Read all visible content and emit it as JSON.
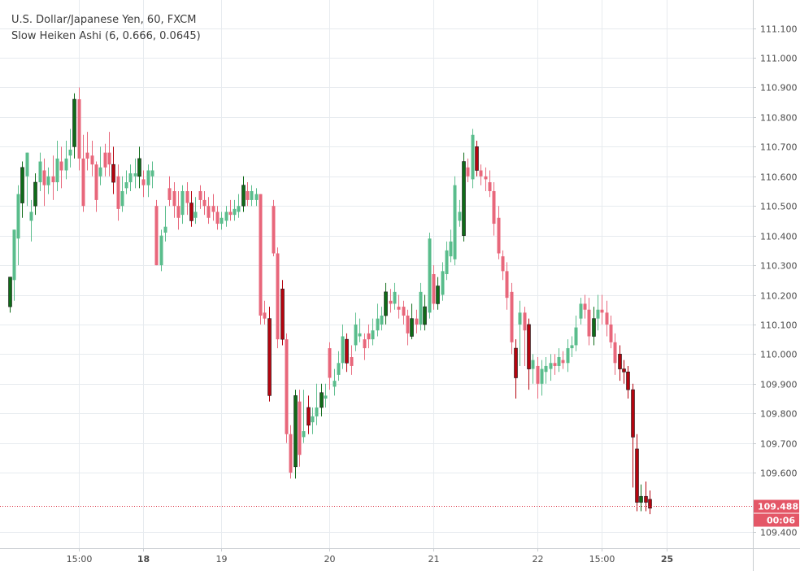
{
  "legend": {
    "title": "U.S. Dollar/Japanese Yen, 60, FXCM",
    "indicator": "Slow Heiken Ashi (6, 0.666, 0.0645)"
  },
  "colors": {
    "bull_light": "#5abd8c",
    "bull_dark": "#0f6b18",
    "bear_light": "#e8677b",
    "bear_dark": "#b5040f",
    "grid": "#e7ebef",
    "price_line": "#d92e3e",
    "price_tag": "#e45767",
    "axis_border": "#c8ccd0"
  },
  "chart_data": {
    "type": "candlestick",
    "ylim": [
      109.345,
      111.195
    ],
    "y_ticks": [
      111.1,
      111.0,
      110.9,
      110.8,
      110.7,
      110.6,
      110.5,
      110.4,
      110.3,
      110.2,
      110.1,
      110.0,
      109.9,
      109.8,
      109.7,
      109.6,
      109.4
    ],
    "y_tick_labels": [
      "111.100",
      "111.000",
      "110.900",
      "110.800",
      "110.700",
      "110.600",
      "110.500",
      "110.400",
      "110.300",
      "110.200",
      "110.100",
      "110.000",
      "109.900",
      "109.800",
      "109.700",
      "109.600",
      "109.400"
    ],
    "x_ticks": [
      {
        "bar": 16,
        "label": "15:00",
        "bold": false
      },
      {
        "bar": 31,
        "label": "18",
        "bold": true
      },
      {
        "bar": 49,
        "label": "19",
        "bold": false
      },
      {
        "bar": 74,
        "label": "20",
        "bold": false
      },
      {
        "bar": 98,
        "label": "21",
        "bold": false
      },
      {
        "bar": 122,
        "label": "22",
        "bold": false
      },
      {
        "bar": 137,
        "label": "15:00",
        "bold": false
      },
      {
        "bar": 152,
        "label": "25",
        "bold": true
      }
    ],
    "last_price": 109.488,
    "last_price_label": "109.488",
    "countdown": "00:06",
    "candles": [
      [
        110.16,
        110.26,
        110.26,
        110.14
      ],
      [
        110.25,
        110.42,
        110.42,
        110.18
      ],
      [
        110.39,
        110.54,
        110.57,
        110.3
      ],
      [
        110.51,
        110.63,
        110.65,
        110.46
      ],
      [
        110.6,
        110.68,
        110.68,
        110.5
      ],
      [
        110.45,
        110.48,
        110.52,
        110.38
      ],
      [
        110.5,
        110.58,
        110.61,
        110.47
      ],
      [
        110.58,
        110.65,
        110.68,
        110.55
      ],
      [
        110.62,
        110.57,
        110.66,
        110.5
      ],
      [
        110.57,
        110.6,
        110.63,
        110.54
      ],
      [
        110.6,
        110.58,
        110.67,
        110.52
      ],
      [
        110.58,
        110.66,
        110.72,
        110.55
      ],
      [
        110.65,
        110.62,
        110.7,
        110.56
      ],
      [
        110.62,
        110.66,
        110.72,
        110.59
      ],
      [
        110.67,
        110.69,
        110.76,
        110.63
      ],
      [
        110.7,
        110.86,
        110.88,
        110.66
      ],
      [
        110.86,
        110.66,
        110.9,
        110.62
      ],
      [
        110.66,
        110.5,
        110.74,
        110.48
      ],
      [
        110.68,
        110.66,
        110.75,
        110.62
      ],
      [
        110.67,
        110.64,
        110.72,
        110.6
      ],
      [
        110.64,
        110.52,
        110.65,
        110.48
      ],
      [
        110.6,
        110.63,
        110.7,
        110.57
      ],
      [
        110.68,
        110.63,
        110.71,
        110.6
      ],
      [
        110.68,
        110.64,
        110.75,
        110.6
      ],
      [
        110.64,
        110.58,
        110.7,
        110.54
      ],
      [
        110.6,
        110.49,
        110.64,
        110.45
      ],
      [
        110.5,
        110.55,
        110.6,
        110.48
      ],
      [
        110.56,
        110.58,
        110.62,
        110.54
      ],
      [
        110.58,
        110.61,
        110.64,
        110.55
      ],
      [
        110.6,
        110.61,
        110.66,
        110.56
      ],
      [
        110.6,
        110.66,
        110.7,
        110.56
      ],
      [
        110.59,
        110.57,
        110.62,
        110.53
      ],
      [
        110.57,
        110.62,
        110.64,
        110.53
      ],
      [
        110.6,
        110.62,
        110.65,
        110.56
      ],
      [
        110.5,
        110.3,
        110.52,
        110.3
      ],
      [
        110.3,
        110.4,
        110.42,
        110.28
      ],
      [
        110.41,
        110.43,
        110.5,
        110.38
      ],
      [
        110.56,
        110.52,
        110.6,
        110.5
      ],
      [
        110.55,
        110.5,
        110.58,
        110.46
      ],
      [
        110.5,
        110.46,
        110.55,
        110.42
      ],
      [
        110.47,
        110.55,
        110.57,
        110.44
      ],
      [
        110.55,
        110.51,
        110.58,
        110.47
      ],
      [
        110.51,
        110.45,
        110.55,
        110.43
      ],
      [
        110.46,
        110.48,
        110.53,
        110.44
      ],
      [
        110.55,
        110.52,
        110.57,
        110.49
      ],
      [
        110.52,
        110.5,
        110.55,
        110.47
      ],
      [
        110.5,
        110.46,
        110.53,
        110.44
      ],
      [
        110.5,
        110.48,
        110.54,
        110.45
      ],
      [
        110.48,
        110.44,
        110.5,
        110.42
      ],
      [
        110.44,
        110.46,
        110.48,
        110.42
      ],
      [
        110.45,
        110.48,
        110.5,
        110.43
      ],
      [
        110.48,
        110.47,
        110.52,
        110.45
      ],
      [
        110.47,
        110.49,
        110.52,
        110.45
      ],
      [
        110.48,
        110.5,
        110.54,
        110.46
      ],
      [
        110.5,
        110.57,
        110.6,
        110.48
      ],
      [
        110.55,
        110.52,
        110.58,
        110.5
      ],
      [
        110.52,
        110.55,
        110.57,
        110.5
      ],
      [
        110.52,
        110.54,
        110.56,
        110.5
      ],
      [
        110.54,
        110.13,
        110.54,
        110.1
      ],
      [
        110.14,
        110.12,
        110.18,
        110.1
      ],
      [
        110.12,
        109.86,
        110.16,
        109.84
      ],
      [
        110.5,
        110.34,
        110.52,
        110.33
      ],
      [
        110.34,
        110.05,
        110.36,
        110.02
      ],
      [
        110.22,
        110.05,
        110.25,
        110.03
      ],
      [
        110.05,
        109.73,
        110.07,
        109.7
      ],
      [
        109.73,
        109.6,
        109.76,
        109.58
      ],
      [
        109.62,
        109.86,
        109.88,
        109.58
      ],
      [
        109.84,
        109.66,
        109.88,
        109.62
      ],
      [
        109.72,
        109.74,
        109.88,
        109.7
      ],
      [
        109.82,
        109.76,
        109.86,
        109.73
      ],
      [
        109.77,
        109.79,
        109.82,
        109.73
      ],
      [
        109.79,
        109.82,
        109.9,
        109.76
      ],
      [
        109.82,
        109.87,
        109.9,
        109.79
      ],
      [
        109.85,
        109.86,
        109.9,
        109.82
      ],
      [
        110.02,
        109.92,
        110.04,
        109.88
      ],
      [
        109.89,
        109.91,
        109.95,
        109.86
      ],
      [
        109.93,
        109.97,
        110.01,
        109.91
      ],
      [
        109.97,
        110.06,
        110.1,
        109.95
      ],
      [
        110.05,
        109.97,
        110.07,
        109.94
      ],
      [
        109.99,
        109.96,
        110.03,
        109.93
      ],
      [
        110.03,
        110.1,
        110.14,
        110.01
      ],
      [
        110.06,
        110.07,
        110.12,
        110.04
      ],
      [
        110.05,
        110.02,
        110.07,
        109.98
      ],
      [
        110.07,
        110.05,
        110.1,
        110.02
      ],
      [
        110.05,
        110.08,
        110.12,
        110.03
      ],
      [
        110.08,
        110.12,
        110.17,
        110.06
      ],
      [
        110.1,
        110.13,
        110.16,
        110.08
      ],
      [
        110.13,
        110.21,
        110.24,
        110.1
      ],
      [
        110.18,
        110.17,
        110.22,
        110.14
      ],
      [
        110.17,
        110.21,
        110.24,
        110.15
      ],
      [
        110.16,
        110.15,
        110.2,
        110.12
      ],
      [
        110.16,
        110.13,
        110.18,
        110.1
      ],
      [
        110.13,
        110.07,
        110.15,
        110.03
      ],
      [
        110.06,
        110.12,
        110.17,
        110.05
      ],
      [
        110.12,
        110.1,
        110.15,
        110.07
      ],
      [
        110.1,
        110.21,
        110.24,
        110.08
      ],
      [
        110.1,
        110.16,
        110.2,
        110.08
      ],
      [
        110.14,
        110.39,
        110.41,
        110.12
      ],
      [
        110.27,
        110.17,
        110.3,
        110.15
      ],
      [
        110.17,
        110.23,
        110.26,
        110.15
      ],
      [
        110.2,
        110.28,
        110.31,
        110.18
      ],
      [
        110.27,
        110.35,
        110.38,
        110.25
      ],
      [
        110.33,
        110.38,
        110.42,
        110.31
      ],
      [
        110.32,
        110.57,
        110.6,
        110.3
      ],
      [
        110.45,
        110.48,
        110.52,
        110.43
      ],
      [
        110.4,
        110.65,
        110.68,
        110.38
      ],
      [
        110.63,
        110.6,
        110.66,
        110.58
      ],
      [
        110.59,
        110.74,
        110.76,
        110.56
      ],
      [
        110.7,
        110.62,
        110.72,
        110.6
      ],
      [
        110.62,
        110.6,
        110.64,
        110.57
      ],
      [
        110.6,
        110.59,
        110.63,
        110.55
      ],
      [
        110.58,
        110.55,
        110.62,
        110.53
      ],
      [
        110.55,
        110.44,
        110.58,
        110.4
      ],
      [
        110.46,
        110.34,
        110.5,
        110.32
      ],
      [
        110.33,
        110.28,
        110.35,
        110.25
      ],
      [
        110.28,
        110.19,
        110.31,
        110.15
      ],
      [
        110.21,
        110.04,
        110.24,
        110.0
      ],
      [
        110.02,
        109.92,
        110.05,
        109.85
      ],
      [
        110.1,
        110.14,
        110.18,
        109.96
      ],
      [
        110.14,
        110.08,
        110.16,
        109.96
      ],
      [
        110.1,
        109.95,
        110.12,
        109.88
      ],
      [
        109.95,
        109.98,
        110.0,
        109.9
      ],
      [
        109.96,
        109.9,
        109.99,
        109.85
      ],
      [
        109.9,
        109.95,
        109.98,
        109.86
      ],
      [
        109.94,
        109.96,
        109.99,
        109.9
      ],
      [
        109.95,
        109.97,
        110.0,
        109.91
      ],
      [
        109.97,
        109.96,
        110.0,
        109.93
      ],
      [
        109.96,
        109.99,
        110.02,
        109.94
      ],
      [
        109.98,
        109.97,
        110.01,
        109.95
      ],
      [
        109.97,
        110.02,
        110.05,
        109.94
      ],
      [
        110.02,
        110.03,
        110.06,
        109.99
      ],
      [
        110.03,
        110.09,
        110.13,
        110.01
      ],
      [
        110.12,
        110.17,
        110.19,
        110.1
      ],
      [
        110.17,
        110.15,
        110.2,
        110.12
      ],
      [
        110.15,
        110.06,
        110.19,
        110.03
      ],
      [
        110.06,
        110.12,
        110.16,
        110.03
      ],
      [
        110.12,
        110.15,
        110.2,
        110.08
      ],
      [
        110.15,
        110.14,
        110.2,
        110.1
      ],
      [
        110.14,
        110.1,
        110.18,
        110.06
      ],
      [
        110.1,
        110.04,
        110.13,
        110.02
      ],
      [
        110.04,
        109.97,
        110.07,
        109.93
      ],
      [
        110.0,
        109.95,
        110.03,
        109.91
      ],
      [
        109.95,
        109.94,
        109.98,
        109.9
      ],
      [
        109.94,
        109.88,
        109.96,
        109.85
      ],
      [
        109.88,
        109.72,
        109.9,
        109.55
      ],
      [
        109.68,
        109.5,
        109.73,
        109.47
      ],
      [
        109.5,
        109.52,
        109.56,
        109.47
      ],
      [
        109.52,
        109.5,
        109.57,
        109.47
      ],
      [
        109.51,
        109.48,
        109.54,
        109.46
      ]
    ]
  }
}
